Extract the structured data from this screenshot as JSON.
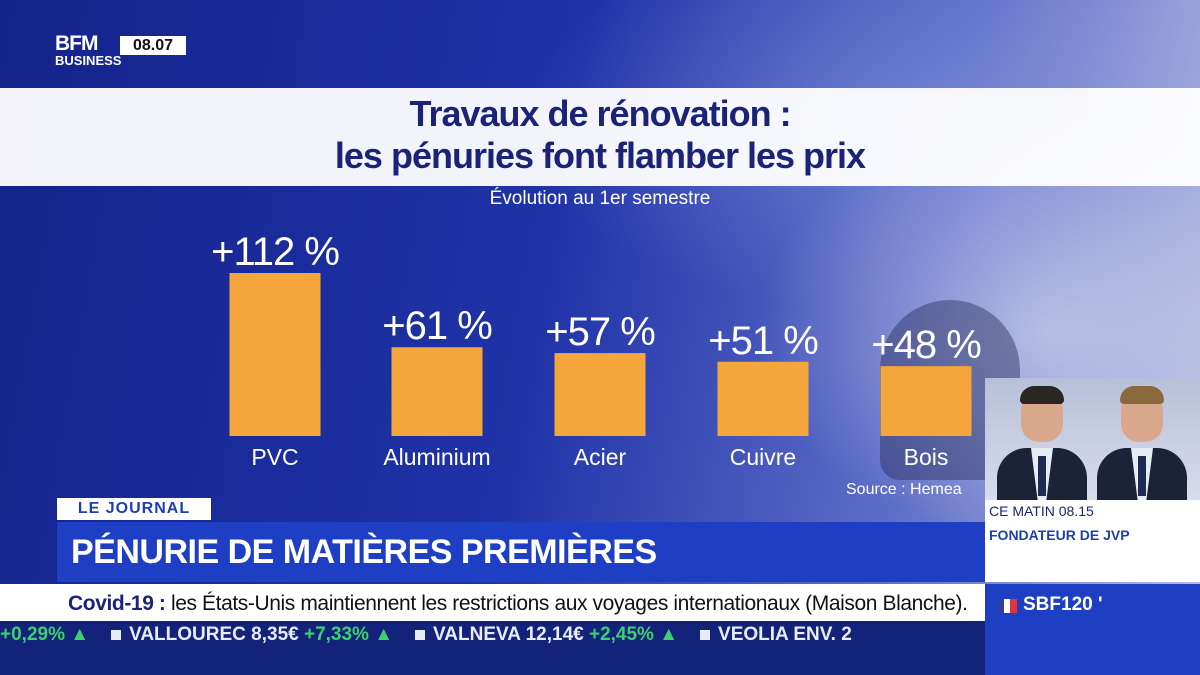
{
  "channel": {
    "logo_line1": "BFM",
    "logo_line2": "BUSINESS",
    "clock": "08.07"
  },
  "chart_data": {
    "type": "bar",
    "title_line1": "Travaux de rénovation :",
    "title_line2": "les pénuries font flamber les prix",
    "subtitle": "Évolution au 1er semestre",
    "categories": [
      "PVC",
      "Aluminium",
      "Acier",
      "Cuivre",
      "Bois"
    ],
    "values": [
      112,
      61,
      57,
      51,
      48
    ],
    "data_labels": [
      "+112 %",
      "+61 %",
      "+57 %",
      "+51 %",
      "+48 %"
    ],
    "unit": "%",
    "source": "Source : Hemea",
    "bar_color": "#f4a53c",
    "ylim": [
      0,
      112
    ],
    "grid": false
  },
  "lower_third": {
    "tag": "LE JOURNAL",
    "headline": "PÉNURIE DE MATIÈRES PREMIÈRES"
  },
  "show": {
    "time": "CE MATIN 08.15",
    "guest": "FONDATEUR DE JVP"
  },
  "news_ticker": {
    "keyword": "Covid-19 :",
    "text": " les États-Unis maintiennent les restrictions aux voyages internationaux (Maison Blanche)."
  },
  "index": {
    "name": "SBF120 '"
  },
  "stocks": [
    {
      "name": "",
      "change": "+0,29%"
    },
    {
      "name": "VALLOUREC",
      "price": "8,35€",
      "change": "+7,33%"
    },
    {
      "name": "VALNEVA",
      "price": "12,14€",
      "change": "+2,45%"
    },
    {
      "name": "VEOLIA ENV.",
      "price": "2",
      "change": ""
    }
  ],
  "colors": {
    "brand_blue": "#1e3ec4",
    "title_navy": "#1a2377",
    "positive_green": "#3bd16f"
  }
}
